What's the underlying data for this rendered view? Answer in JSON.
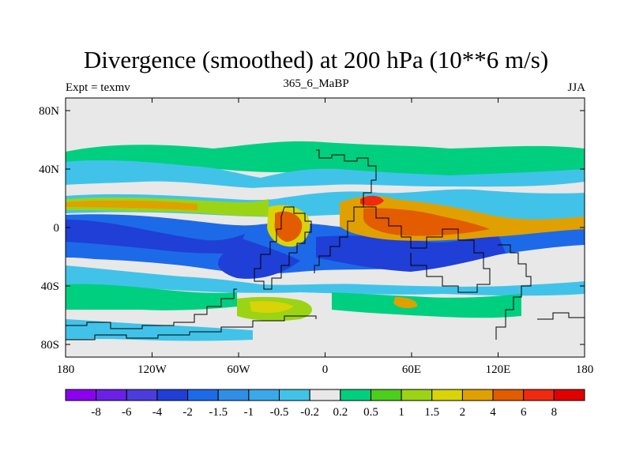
{
  "figure": {
    "title": "Divergence (smoothed) at 200 hPa (10**6 m/s)",
    "left_subtitle": "Expt = texmv",
    "center_subtitle": "365_6_MaBP",
    "right_subtitle": "JJA"
  },
  "axes": {
    "lat_ticks": [
      "80N",
      "40N",
      "0",
      "40S",
      "80S"
    ],
    "lon_ticks": [
      "180",
      "120W",
      "60W",
      "0",
      "60E",
      "120E",
      "180"
    ]
  },
  "colorbar": {
    "colors": [
      "#8b00ef",
      "#6a20e6",
      "#4b3ddc",
      "#1f3fd6",
      "#1c6ae8",
      "#2f8fe6",
      "#3aa9ea",
      "#41c3e9",
      "#e8e8e8",
      "#00cf80",
      "#4cce1c",
      "#9bd414",
      "#d8d407",
      "#e0a000",
      "#e35c00",
      "#ef2a10",
      "#e00000"
    ],
    "labels": [
      "-8",
      "-6",
      "-4",
      "-2",
      "-1.5",
      "-1",
      "-0.5",
      "-0.2",
      "0.2",
      "0.5",
      "1",
      "1.5",
      "2",
      "4",
      "6",
      "8"
    ]
  },
  "field": {
    "background": "#e8e8e8",
    "coastline_color": "#000000"
  }
}
